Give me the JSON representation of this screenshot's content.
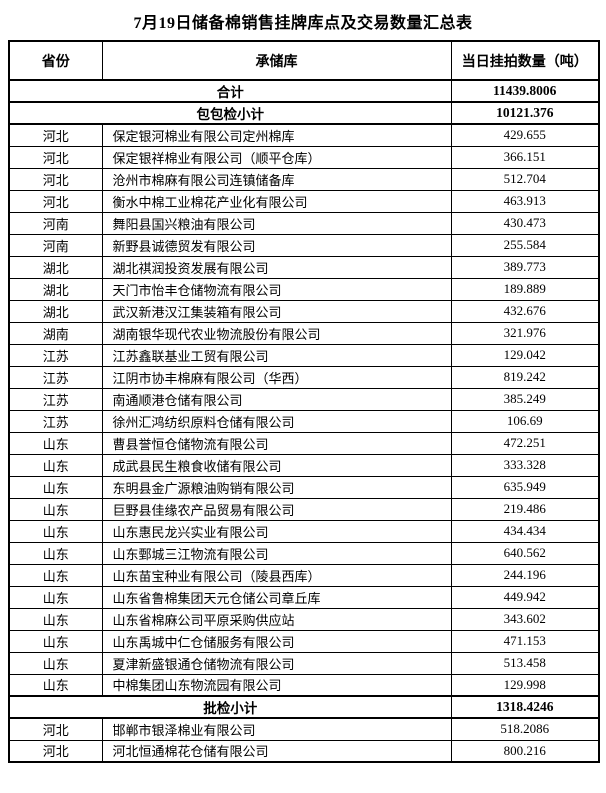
{
  "page": {
    "title": "7月19日储备棉销售挂牌库点及交易数量汇总表"
  },
  "table": {
    "headers": {
      "province": "省份",
      "warehouse": "承储库",
      "quantity": "当日挂拍数量（吨）"
    },
    "rows": [
      {
        "type": "total",
        "label": "合计",
        "quantity": "11439.8006"
      },
      {
        "type": "subtotal",
        "label": "包包检小计",
        "quantity": "10121.376"
      },
      {
        "type": "data",
        "province": "河北",
        "warehouse": "保定银河棉业有限公司定州棉库",
        "quantity": "429.655"
      },
      {
        "type": "data",
        "province": "河北",
        "warehouse": "保定银祥棉业有限公司（顺平仓库）",
        "quantity": "366.151"
      },
      {
        "type": "data",
        "province": "河北",
        "warehouse": "沧州市棉麻有限公司连镇储备库",
        "quantity": "512.704"
      },
      {
        "type": "data",
        "province": "河北",
        "warehouse": "衡水中棉工业棉花产业化有限公司",
        "quantity": "463.913"
      },
      {
        "type": "data",
        "province": "河南",
        "warehouse": "舞阳县国兴粮油有限公司",
        "quantity": "430.473"
      },
      {
        "type": "data",
        "province": "河南",
        "warehouse": "新野县诚德贸发有限公司",
        "quantity": "255.584"
      },
      {
        "type": "data",
        "province": "湖北",
        "warehouse": "湖北祺润投资发展有限公司",
        "quantity": "389.773"
      },
      {
        "type": "data",
        "province": "湖北",
        "warehouse": "天门市怡丰仓储物流有限公司",
        "quantity": "189.889"
      },
      {
        "type": "data",
        "province": "湖北",
        "warehouse": "武汉新港汉江集装箱有限公司",
        "quantity": "432.676"
      },
      {
        "type": "data",
        "province": "湖南",
        "warehouse": "湖南银华现代农业物流股份有限公司",
        "quantity": "321.976"
      },
      {
        "type": "data",
        "province": "江苏",
        "warehouse": "江苏鑫联基业工贸有限公司",
        "quantity": "129.042"
      },
      {
        "type": "data",
        "province": "江苏",
        "warehouse": "江阴市协丰棉麻有限公司（华西）",
        "quantity": "819.242"
      },
      {
        "type": "data",
        "province": "江苏",
        "warehouse": "南通顺港仓储有限公司",
        "quantity": "385.249"
      },
      {
        "type": "data",
        "province": "江苏",
        "warehouse": "徐州汇鸿纺织原料仓储有限公司",
        "quantity": "106.69"
      },
      {
        "type": "data",
        "province": "山东",
        "warehouse": "曹县誉恒仓储物流有限公司",
        "quantity": "472.251"
      },
      {
        "type": "data",
        "province": "山东",
        "warehouse": "成武县民生粮食收储有限公司",
        "quantity": "333.328"
      },
      {
        "type": "data",
        "province": "山东",
        "warehouse": "东明县金广源粮油购销有限公司",
        "quantity": "635.949"
      },
      {
        "type": "data",
        "province": "山东",
        "warehouse": "巨野县佳缘农产品贸易有限公司",
        "quantity": "219.486"
      },
      {
        "type": "data",
        "province": "山东",
        "warehouse": "山东惠民龙兴实业有限公司",
        "quantity": "434.434"
      },
      {
        "type": "data",
        "province": "山东",
        "warehouse": "山东鄄城三江物流有限公司",
        "quantity": "640.562"
      },
      {
        "type": "data",
        "province": "山东",
        "warehouse": "山东苗宝种业有限公司（陵县西库）",
        "quantity": "244.196"
      },
      {
        "type": "data",
        "province": "山东",
        "warehouse": "山东省鲁棉集团天元仓储公司章丘库",
        "quantity": "449.942"
      },
      {
        "type": "data",
        "province": "山东",
        "warehouse": "山东省棉麻公司平原采购供应站",
        "quantity": "343.602"
      },
      {
        "type": "data",
        "province": "山东",
        "warehouse": "山东禹城中仁仓储服务有限公司",
        "quantity": "471.153"
      },
      {
        "type": "data",
        "province": "山东",
        "warehouse": "夏津新盛银通仓储物流有限公司",
        "quantity": "513.458"
      },
      {
        "type": "data",
        "province": "山东",
        "warehouse": "中棉集团山东物流园有限公司",
        "quantity": "129.998"
      },
      {
        "type": "subtotal",
        "label": "批检小计",
        "quantity": "1318.4246"
      },
      {
        "type": "data",
        "province": "河北",
        "warehouse": "邯郸市银泽棉业有限公司",
        "quantity": "518.2086"
      },
      {
        "type": "data",
        "province": "河北",
        "warehouse": "河北恒通棉花仓储有限公司",
        "quantity": "800.216"
      }
    ]
  }
}
